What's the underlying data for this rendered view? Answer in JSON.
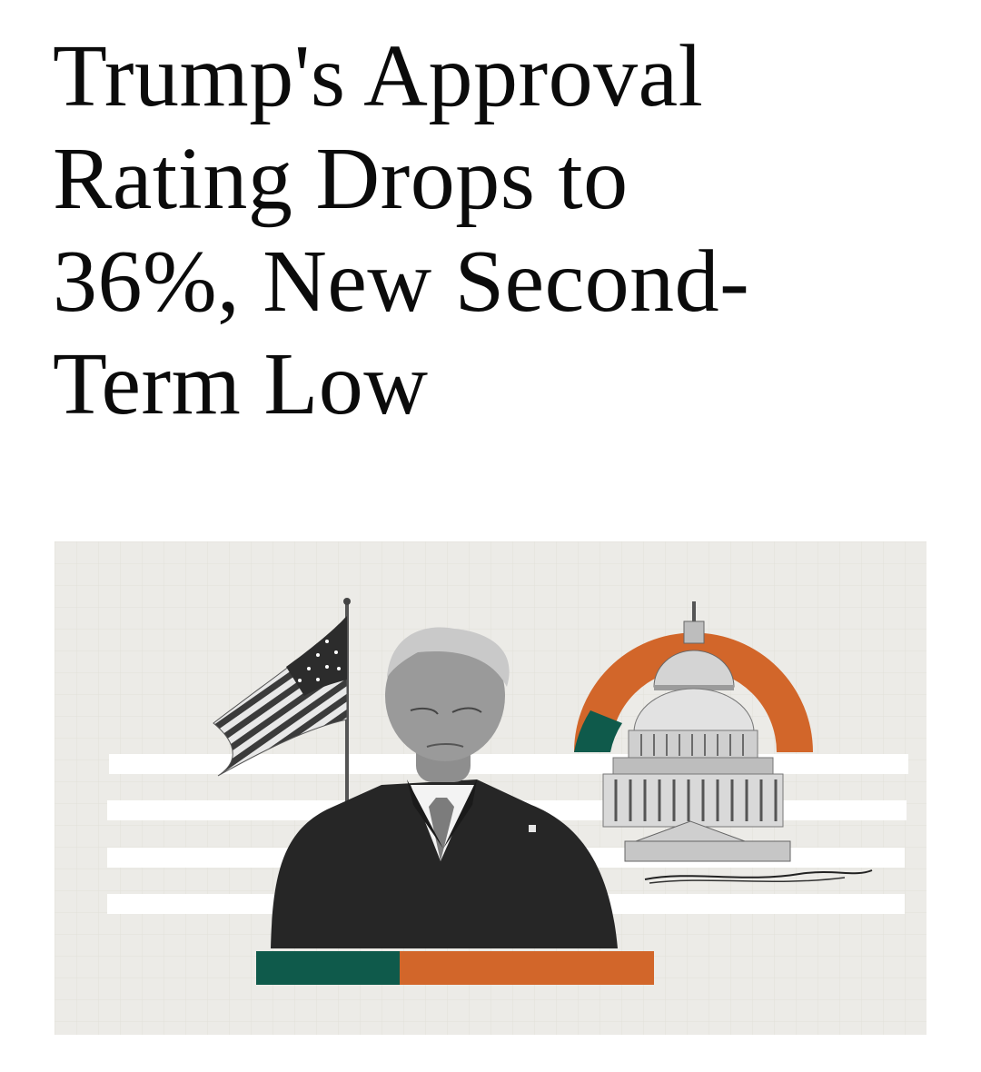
{
  "article": {
    "headline_lines": [
      "Trump's Approval",
      "Rating Drops to",
      "36%, New Second-",
      "Term Low"
    ]
  },
  "hero": {
    "background_color": "#ecebe7",
    "accent_orange": "#d2662a",
    "accent_green": "#0f5a4b",
    "approval_share": 0.36,
    "disapproval_share": 0.64
  }
}
